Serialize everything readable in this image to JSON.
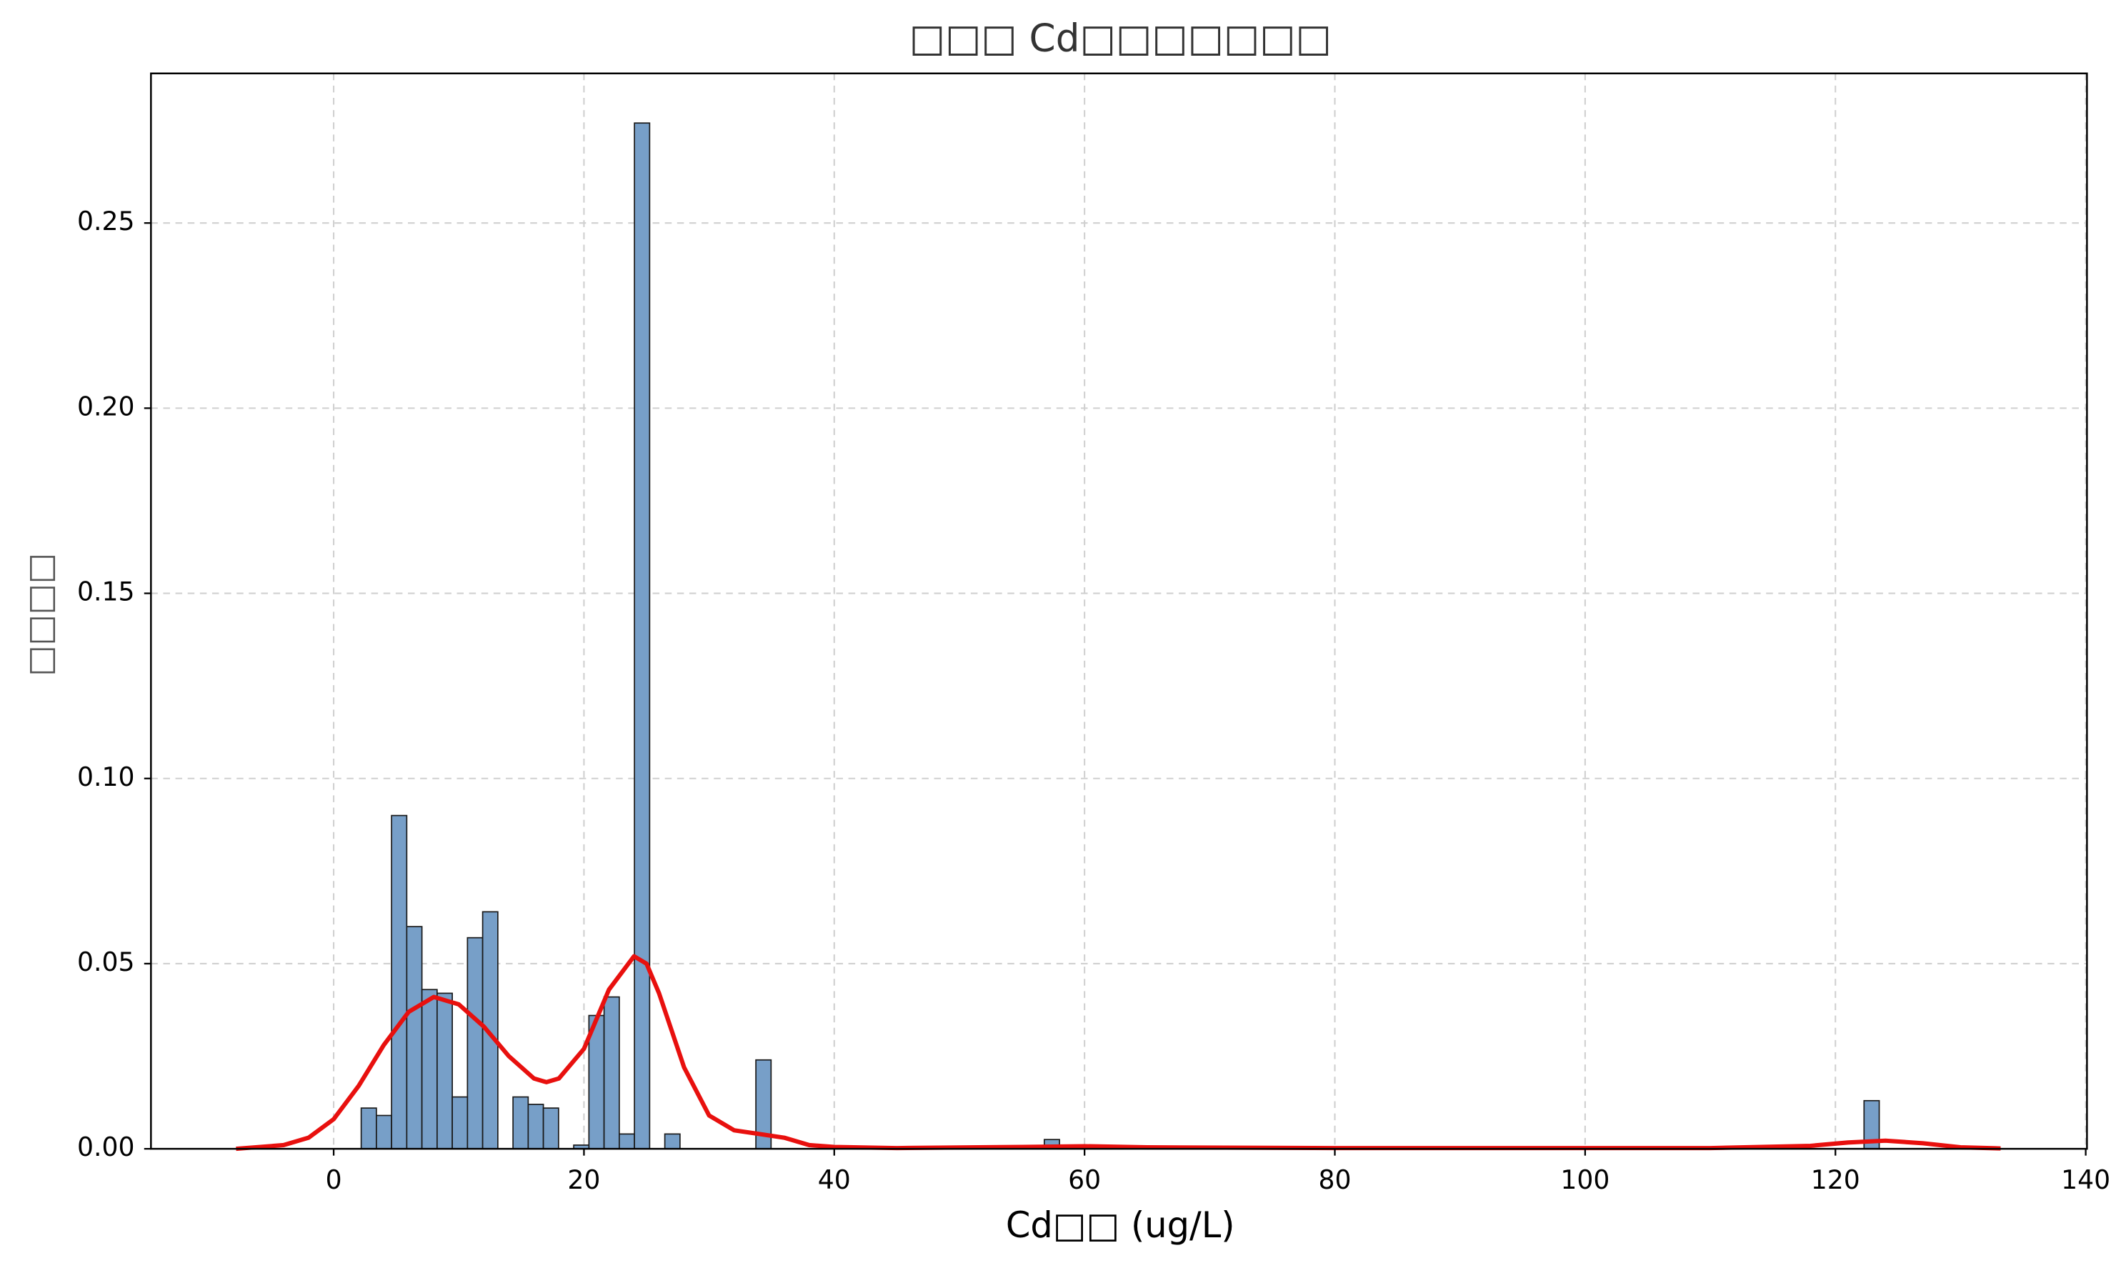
{
  "chart_data": {
    "type": "histogram",
    "title": "□□□ Cd□□□□□□□",
    "x_label": "Cd□□ (ug/L)",
    "y_label": "□□□□",
    "bins": [
      2.2,
      3.413,
      4.626,
      5.839,
      7.052,
      8.265,
      9.478,
      10.691,
      11.904,
      13.117,
      14.33,
      15.543,
      16.756,
      17.969,
      19.182,
      20.395,
      21.608,
      22.821,
      24.034,
      25.247,
      26.46,
      27.673,
      28.886,
      30.099,
      31.312,
      32.525,
      33.738,
      34.951,
      36.164,
      37.377,
      38.59,
      39.803,
      41.016,
      42.229,
      43.442,
      44.655,
      45.868,
      47.081,
      48.294,
      49.507,
      50.72,
      51.933,
      53.146,
      54.359,
      55.572,
      56.785,
      57.998,
      59.211,
      60.424,
      61.637,
      62.85,
      64.063,
      65.276,
      66.489,
      67.702,
      68.915,
      70.128,
      71.341,
      72.554,
      73.767,
      74.98,
      76.193,
      77.406,
      78.619,
      79.832,
      81.045,
      82.258,
      83.471,
      84.684,
      85.897,
      87.11,
      88.323,
      89.536,
      90.749,
      91.962,
      93.175,
      94.388,
      95.601,
      96.814,
      98.027,
      99.24,
      100.453,
      101.666,
      102.879,
      104.092,
      105.305,
      106.518,
      107.731,
      108.944,
      110.157,
      111.37,
      112.583,
      113.796,
      115.009,
      116.222,
      117.435,
      118.648,
      119.861,
      121.074,
      122.287,
      123.5
    ],
    "values": [
      0.011,
      0.009,
      0.09,
      0.06,
      0.043,
      0.042,
      0.014,
      0.057,
      0.064,
      0,
      0.014,
      0.012,
      0.011,
      0,
      0.001,
      0.036,
      0.041,
      0.004,
      0.277,
      0,
      0.004,
      0,
      0,
      0,
      0,
      0,
      0.024,
      0,
      0,
      0,
      0,
      0,
      0,
      0,
      0,
      0,
      0,
      0,
      0,
      0,
      0,
      0,
      0,
      0,
      0,
      0.0025,
      0,
      0,
      0,
      0,
      0,
      0,
      0,
      0,
      0,
      0,
      0,
      0,
      0,
      0,
      0,
      0,
      0,
      0,
      0,
      0,
      0,
      0,
      0,
      0,
      0,
      0,
      0,
      0,
      0,
      0,
      0,
      0,
      0,
      0,
      0,
      0,
      0,
      0,
      0,
      0,
      0,
      0,
      0,
      0,
      0,
      0,
      0,
      0,
      0,
      0,
      0,
      0,
      0,
      0.013
    ],
    "color": "#779fc8",
    "kde": {
      "color": "#e8100e",
      "x": [
        -7.8,
        -4,
        -2,
        0,
        2,
        4,
        6,
        8,
        10,
        12,
        14,
        16,
        17,
        18,
        20,
        22,
        24,
        25,
        26,
        28,
        30,
        32,
        34,
        36,
        38,
        40,
        45,
        55,
        60,
        65,
        80,
        110,
        118,
        121,
        124,
        127,
        130,
        133.2
      ],
      "values": [
        0,
        0.001,
        0.003,
        0.008,
        0.017,
        0.028,
        0.037,
        0.041,
        0.039,
        0.033,
        0.025,
        0.019,
        0.018,
        0.019,
        0.027,
        0.043,
        0.052,
        0.05,
        0.042,
        0.022,
        0.009,
        0.005,
        0.004,
        0.003,
        0.001,
        0.0005,
        0.0002,
        0.0005,
        0.0007,
        0.0004,
        0.0002,
        0.0002,
        0.0008,
        0.0017,
        0.0022,
        0.0015,
        0.0004,
        0.0001
      ]
    },
    "xlim": [
      -14.6,
      140.1
    ],
    "ylim": [
      0,
      0.2904
    ],
    "xticks": [
      0,
      20,
      40,
      60,
      80,
      100,
      120,
      140
    ],
    "yticks": [
      {
        "value": 0,
        "label": "0.00"
      },
      {
        "value": 0.05,
        "label": "0.05"
      },
      {
        "value": 0.1,
        "label": "0.10"
      },
      {
        "value": 0.15,
        "label": "0.15"
      },
      {
        "value": 0.2,
        "label": "0.20"
      },
      {
        "value": 0.25,
        "label": "0.25"
      }
    ],
    "grid": true
  }
}
